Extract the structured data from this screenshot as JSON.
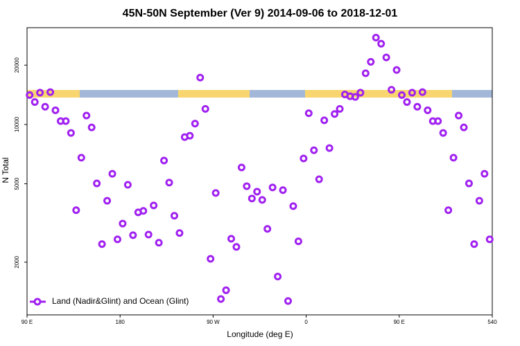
{
  "chart_data": {
    "type": "scatter",
    "title": "45N-50N September (Ver 9)   2014-09-06 to 2018-12-01",
    "x_label": "Longitude (deg E)",
    "y_label": "N Total",
    "log_y": true,
    "legend": "bottom-left",
    "xlim": [
      90,
      540
    ],
    "ylim": [
      1080,
      31000
    ],
    "xticks": [
      {
        "value": 90,
        "label": "90 E"
      },
      180,
      {
        "value": 270,
        "label": "90 W"
      },
      {
        "value": 360,
        "label": "0"
      },
      {
        "value": 450,
        "label": "90 E"
      },
      540
    ],
    "yticks": [
      2000,
      5000,
      10000,
      20000
    ],
    "x": [
      92.5,
      97.5,
      102.5,
      107.5,
      112.5,
      117.5,
      122.5,
      127.5,
      132.5,
      137.5,
      142.5,
      147.5,
      152.5,
      157.5,
      162.5,
      167.5,
      172.5,
      177.5,
      182.5,
      187.5,
      192.5,
      197.5,
      202.5,
      207.5,
      212.5,
      217.5,
      222.5,
      227.5,
      232.5,
      237.5,
      242.5,
      247.5,
      252.5,
      257.5,
      262.5,
      267.5,
      272.5,
      277.5,
      282.5,
      287.5,
      292.5,
      297.5,
      302.5,
      307.5,
      312.5,
      317.5,
      322.5,
      327.5,
      332.5,
      337.5,
      342.5,
      347.5,
      352.5,
      357.5,
      362.5,
      367.5,
      372.5,
      377.5,
      382.5,
      387.5,
      392.5,
      397.5,
      402.5,
      407.5,
      412.5,
      417.5,
      422.5,
      427.5,
      432.5,
      437.5,
      442.5,
      447.5,
      452.5,
      457.5,
      462.5,
      467.5,
      472.5,
      477.5,
      482.5,
      487.5,
      492.5,
      497.5,
      502.5,
      507.5,
      512.5,
      517.5,
      522.5,
      527.5,
      532.5,
      537.5
    ],
    "series": [
      {
        "name": "Land (Nadir&Glint) and Ocean (Glint)",
        "color": "#a020f0",
        "values": [
          14100,
          13000,
          14500,
          12300,
          14600,
          11800,
          10400,
          10400,
          9060,
          3670,
          6780,
          11100,
          9660,
          5020,
          2470,
          4100,
          5620,
          2610,
          3140,
          4940,
          2740,
          3580,
          3640,
          2760,
          3880,
          2510,
          6560,
          5070,
          3440,
          2810,
          8630,
          8770,
          10100,
          17300,
          12000,
          2080,
          4490,
          1300,
          1440,
          2630,
          2390,
          6050,
          4860,
          4210,
          4560,
          4140,
          2950,
          4790,
          1690,
          4640,
          1270,
          3850,
          2550,
          6720,
          11400,
          7400,
          5270,
          10500,
          7590,
          11300,
          12000,
          14200,
          13900,
          13800,
          14500,
          18200,
          20800,
          27600,
          25700,
          21900,
          15000,
          18900,
          14100,
          13000,
          14500,
          12300,
          14600,
          11800,
          10400,
          10400,
          9060,
          3670,
          6780,
          11100,
          9660,
          5020,
          2470,
          4100,
          5620,
          2610
        ]
      }
    ]
  }
}
